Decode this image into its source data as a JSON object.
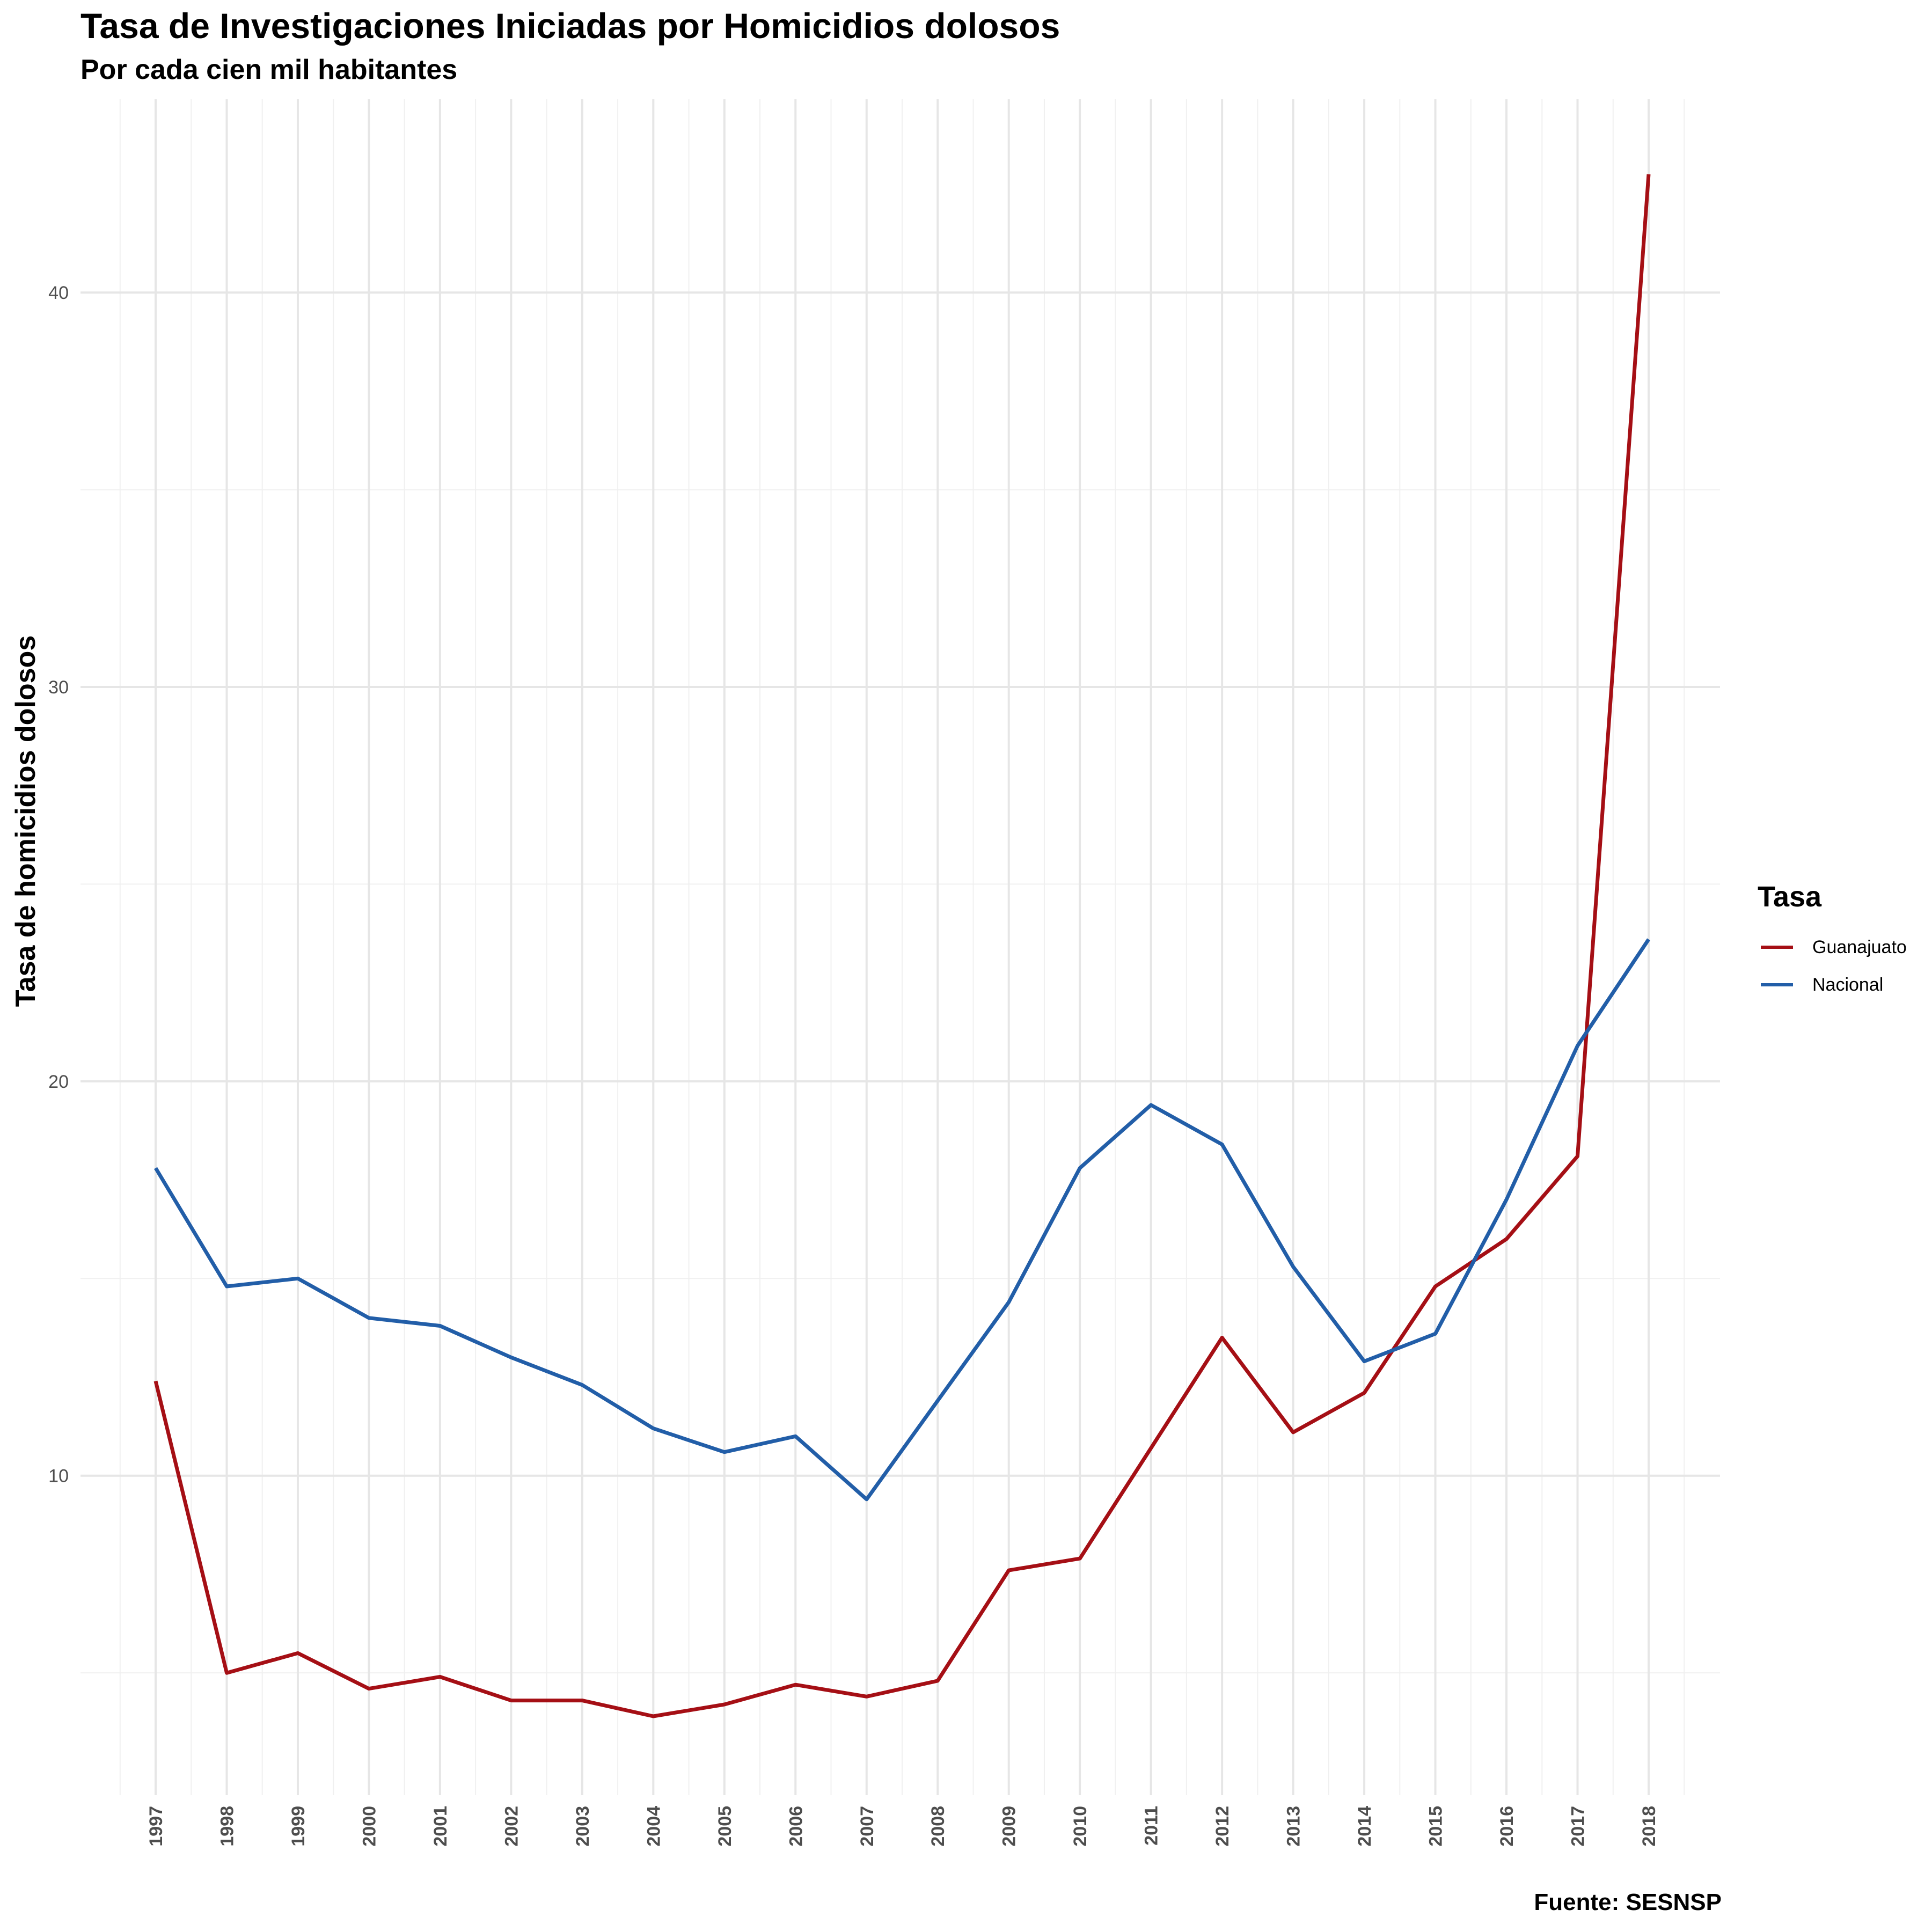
{
  "chart_data": {
    "type": "line",
    "title": "Tasa de Investigaciones Iniciadas por Homicidios dolosos",
    "subtitle": "Por cada cien mil habitantes",
    "xlabel": "",
    "ylabel": "Tasa de homicidios dolosos",
    "caption": "Fuente: SESNSP",
    "x": [
      "1997",
      "1998",
      "1999",
      "2000",
      "2001",
      "2002",
      "2003",
      "2004",
      "2005",
      "2006",
      "2007",
      "2008",
      "2009",
      "2010",
      "2011",
      "2012",
      "2013",
      "2014",
      "2015",
      "2016",
      "2017",
      "2018"
    ],
    "series": [
      {
        "name": "Guanajuato",
        "color": "#a50f15",
        "values": [
          12.4,
          5.0,
          5.5,
          4.6,
          4.9,
          4.3,
          4.3,
          3.9,
          4.2,
          4.7,
          4.4,
          4.8,
          7.6,
          7.9,
          10.7,
          13.5,
          11.1,
          12.1,
          14.8,
          16.0,
          18.1,
          43.0
        ]
      },
      {
        "name": "Nacional",
        "color": "#225ea8",
        "values": [
          17.8,
          14.8,
          15.0,
          14.0,
          13.8,
          13.0,
          12.3,
          11.2,
          10.6,
          11.0,
          9.4,
          11.9,
          14.4,
          17.8,
          19.4,
          18.4,
          15.3,
          12.9,
          13.6,
          17.0,
          20.9,
          23.6
        ]
      }
    ],
    "yticks": [
      10,
      20,
      30,
      40
    ],
    "ylim": [
      1.9,
      44.9
    ],
    "grid": true,
    "legend": {
      "title": "Tasa",
      "position": "right"
    }
  }
}
